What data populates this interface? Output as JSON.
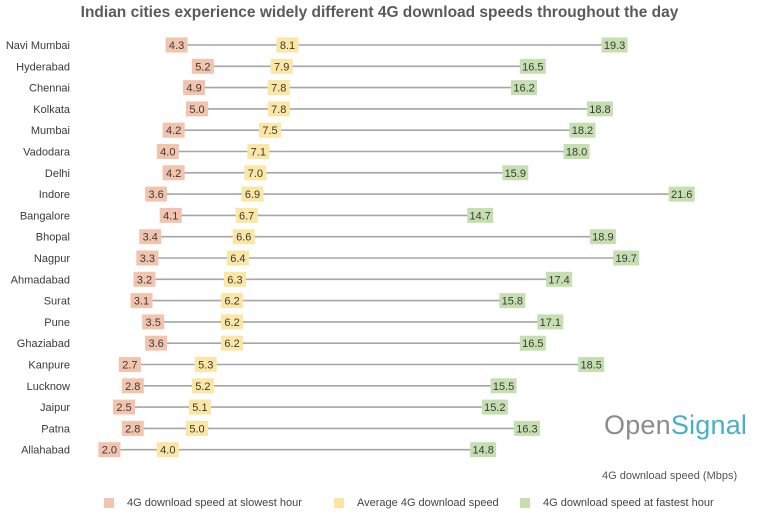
{
  "chart_data": {
    "type": "dumbbell",
    "title": "Indian cities experience widely different 4G download speeds throughout the day",
    "xlabel": "4G download speed (Mbps)",
    "categories": [
      "Navi Mumbai",
      "Hyderabad",
      "Chennai",
      "Kolkata",
      "Mumbai",
      "Vadodara",
      "Delhi",
      "Indore",
      "Bangalore",
      "Bhopal",
      "Nagpur",
      "Ahmadabad",
      "Surat",
      "Pune",
      "Ghaziabad",
      "Kanpure",
      "Lucknow",
      "Jaipur",
      "Patna",
      "Allahabad"
    ],
    "series": [
      {
        "name": "4G download speed at slowest hour",
        "color": "#f2c4ae",
        "values": [
          "4.3",
          "5.2",
          "4.9",
          "5.0",
          "4.2",
          "4.0",
          "4.2",
          "3.6",
          "4.1",
          "3.4",
          "3.3",
          "3.2",
          "3.1",
          "3.5",
          "3.6",
          "2.7",
          "2.8",
          "2.5",
          "2.8",
          "2.0"
        ]
      },
      {
        "name": "Average 4G download speed",
        "color": "#fbe6a3",
        "values": [
          "8.1",
          "7.9",
          "7.8",
          "7.8",
          "7.5",
          "7.1",
          "7.0",
          "6.9",
          "6.7",
          "6.6",
          "6.4",
          "6.3",
          "6.2",
          "6.2",
          "6.2",
          "5.3",
          "5.2",
          "5.1",
          "5.0",
          "4.0"
        ]
      },
      {
        "name": "4G download speed at fastest hour",
        "color": "#c6dfb1",
        "values": [
          "19.3",
          "16.5",
          "16.2",
          "18.8",
          "18.2",
          "18.0",
          "15.9",
          "21.6",
          "14.7",
          "18.9",
          "19.7",
          "17.4",
          "15.8",
          "17.1",
          "16.5",
          "18.5",
          "15.5",
          "15.2",
          "16.3",
          "14.8"
        ]
      }
    ],
    "line_color": "#a6a6a6",
    "legend_position": "bottom"
  },
  "brand": {
    "part1": "Open",
    "part2": "Signal"
  }
}
